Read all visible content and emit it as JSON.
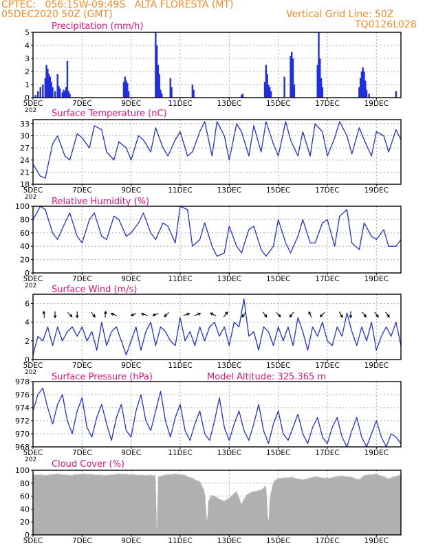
{
  "header": {
    "line1_left": "CPTEC:   056:15W-09:49S   ALTA FLORESTA (MT)",
    "line2_left": "05DEC2020 50Z (GMT)",
    "line2_right": "Vertical Grid Line: 50Z",
    "line3_right": "TQ0126L028",
    "model_altitude": "Model Altitude: 325.365 m"
  },
  "colors": {
    "header": "#f08a24",
    "title": "#e0127a",
    "series": "#1f2fe0",
    "cloud": "#b0b0b0",
    "axis": "#000000",
    "grid": "#aaaaaa"
  },
  "x_ticks": [
    "5DEC",
    "7DEC",
    "9DEC",
    "11DEC",
    "13DEC",
    "15DEC",
    "17DEC",
    "19DEC"
  ],
  "x_tick_days": [
    5,
    7,
    9,
    11,
    13,
    15,
    17,
    19
  ],
  "x_year_fragment": "202",
  "chart_data": [
    {
      "type": "bar",
      "title": "Precipitation (mm/h)",
      "xlim": [
        5,
        20
      ],
      "ylim": [
        0,
        5
      ],
      "yticks": [
        0,
        1,
        2,
        3,
        4,
        5
      ],
      "grid": true,
      "x": [
        5.1,
        5.2,
        5.3,
        5.4,
        5.5,
        5.55,
        5.6,
        5.65,
        5.7,
        5.75,
        5.8,
        5.9,
        6.0,
        6.05,
        6.1,
        6.2,
        6.25,
        6.3,
        6.35,
        6.4,
        6.45,
        6.5,
        8.7,
        8.75,
        8.8,
        8.85,
        8.9,
        10.0,
        10.05,
        10.1,
        10.15,
        10.2,
        10.25,
        10.6,
        10.65,
        11.5,
        11.55,
        13.5,
        13.55,
        14.45,
        14.5,
        14.55,
        14.6,
        14.65,
        14.7,
        15.25,
        15.5,
        15.55,
        15.6,
        15.65,
        16.6,
        16.65,
        16.7,
        16.75,
        16.8,
        18.3,
        18.35,
        18.4,
        18.45,
        18.5,
        18.55,
        18.6,
        18.7,
        19.8
      ],
      "values": [
        0.2,
        0.5,
        0.8,
        1.0,
        1.5,
        2.5,
        2.2,
        1.8,
        1.6,
        1.2,
        0.8,
        0.5,
        1.8,
        0.9,
        0.7,
        0.4,
        0.6,
        0.5,
        0.8,
        2.8,
        0.5,
        0.3,
        1.2,
        1.6,
        1.3,
        1.1,
        0.5,
        5.0,
        4.0,
        2.5,
        1.8,
        0.6,
        0.3,
        1.5,
        0.8,
        1.0,
        0.6,
        0.2,
        0.3,
        1.2,
        2.5,
        1.8,
        1.0,
        0.8,
        0.5,
        1.6,
        3.2,
        3.5,
        3.0,
        1.0,
        2.5,
        5.0,
        3.0,
        1.5,
        0.8,
        0.8,
        1.5,
        2.0,
        2.3,
        2.0,
        1.3,
        0.6,
        0.3,
        0.5
      ]
    },
    {
      "type": "line",
      "title": "Surface Temperature (nC)",
      "xlim": [
        5,
        20
      ],
      "ylim": [
        18,
        34
      ],
      "yticks": [
        18,
        21,
        24,
        27,
        30,
        33
      ],
      "grid": true,
      "x": [
        5.0,
        5.3,
        5.5,
        5.8,
        6.0,
        6.3,
        6.5,
        6.8,
        7.0,
        7.3,
        7.5,
        7.8,
        8.0,
        8.3,
        8.5,
        8.8,
        9.0,
        9.3,
        9.5,
        9.8,
        10.0,
        10.3,
        10.5,
        10.8,
        11.0,
        11.3,
        11.5,
        11.8,
        12.0,
        12.3,
        12.5,
        12.8,
        13.0,
        13.3,
        13.5,
        13.8,
        14.0,
        14.3,
        14.5,
        14.8,
        15.0,
        15.3,
        15.5,
        15.8,
        16.0,
        16.3,
        16.5,
        16.8,
        17.0,
        17.3,
        17.5,
        17.8,
        18.0,
        18.3,
        18.5,
        18.8,
        19.0,
        19.3,
        19.5,
        19.8,
        20.0
      ],
      "values": [
        23.0,
        20.0,
        19.5,
        28.0,
        30.0,
        25.0,
        24.0,
        30.5,
        29.5,
        27.0,
        32.5,
        31.5,
        26.0,
        24.0,
        28.5,
        27.0,
        24.0,
        30.0,
        29.0,
        26.0,
        32.0,
        27.0,
        25.0,
        29.0,
        31.0,
        25.0,
        26.0,
        31.0,
        33.5,
        25.0,
        33.5,
        30.0,
        24.0,
        33.0,
        31.0,
        25.0,
        32.5,
        26.0,
        33.5,
        28.0,
        25.0,
        33.5,
        29.0,
        25.0,
        31.0,
        25.0,
        33.0,
        31.0,
        25.0,
        29.5,
        33.5,
        30.0,
        25.5,
        32.0,
        29.0,
        25.0,
        31.0,
        30.0,
        26.0,
        31.5,
        29.0
      ]
    },
    {
      "type": "line",
      "title": "Relative Humidity (%)",
      "xlim": [
        5,
        20
      ],
      "ylim": [
        0,
        100
      ],
      "yticks": [
        0,
        20,
        40,
        60,
        80,
        100
      ],
      "grid": true,
      "x": [
        5.0,
        5.3,
        5.5,
        5.8,
        6.0,
        6.3,
        6.5,
        6.8,
        7.0,
        7.3,
        7.5,
        7.8,
        8.0,
        8.3,
        8.5,
        8.8,
        9.0,
        9.3,
        9.5,
        9.8,
        10.0,
        10.3,
        10.5,
        10.8,
        11.0,
        11.3,
        11.5,
        11.8,
        12.0,
        12.3,
        12.5,
        12.8,
        13.0,
        13.3,
        13.5,
        13.8,
        14.0,
        14.3,
        14.5,
        14.8,
        15.0,
        15.3,
        15.5,
        15.8,
        16.0,
        16.3,
        16.5,
        16.8,
        17.0,
        17.3,
        17.5,
        17.8,
        18.0,
        18.3,
        18.5,
        18.8,
        19.0,
        19.3,
        19.5,
        19.8,
        20.0
      ],
      "values": [
        80,
        100,
        95,
        60,
        50,
        75,
        90,
        55,
        45,
        80,
        90,
        55,
        50,
        85,
        80,
        55,
        60,
        75,
        90,
        60,
        50,
        75,
        70,
        45,
        100,
        95,
        40,
        50,
        75,
        40,
        25,
        30,
        70,
        40,
        30,
        65,
        70,
        35,
        25,
        40,
        80,
        45,
        30,
        55,
        80,
        45,
        45,
        75,
        80,
        40,
        85,
        95,
        45,
        35,
        75,
        55,
        50,
        65,
        40,
        40,
        50
      ]
    },
    {
      "type": "line",
      "title": "Surface Wind (m/s)",
      "xlim": [
        5,
        20
      ],
      "ylim": [
        0,
        7
      ],
      "yticks": [
        0,
        2,
        4,
        6
      ],
      "grid": true,
      "x": [
        5.0,
        5.2,
        5.4,
        5.6,
        5.8,
        6.0,
        6.2,
        6.4,
        6.6,
        6.8,
        7.0,
        7.2,
        7.4,
        7.6,
        7.8,
        8.0,
        8.2,
        8.4,
        8.6,
        8.8,
        9.0,
        9.2,
        9.4,
        9.6,
        9.8,
        10.0,
        10.2,
        10.4,
        10.6,
        10.8,
        11.0,
        11.2,
        11.4,
        11.6,
        11.8,
        12.0,
        12.2,
        12.4,
        12.6,
        12.8,
        13.0,
        13.2,
        13.4,
        13.6,
        13.8,
        14.0,
        14.2,
        14.4,
        14.6,
        14.8,
        15.0,
        15.2,
        15.4,
        15.6,
        15.8,
        16.0,
        16.2,
        16.4,
        16.6,
        16.8,
        17.0,
        17.2,
        17.4,
        17.6,
        17.8,
        18.0,
        18.2,
        18.4,
        18.6,
        18.8,
        19.0,
        19.2,
        19.4,
        19.6,
        19.8,
        20.0
      ],
      "values": [
        0.5,
        2.5,
        2.0,
        3.5,
        1.5,
        3.5,
        2.0,
        3.0,
        3.5,
        2.5,
        3.5,
        2.0,
        3.0,
        1.0,
        4.0,
        1.5,
        3.0,
        3.5,
        2.0,
        0.5,
        2.0,
        3.5,
        1.0,
        3.0,
        4.0,
        1.5,
        3.5,
        3.0,
        2.0,
        1.5,
        4.5,
        2.0,
        3.0,
        1.5,
        3.5,
        2.0,
        3.5,
        4.0,
        2.5,
        3.5,
        1.5,
        4.0,
        3.5,
        6.5,
        2.5,
        3.0,
        1.0,
        3.5,
        3.0,
        1.5,
        3.5,
        2.0,
        3.5,
        1.5,
        4.5,
        3.0,
        1.0,
        3.5,
        2.5,
        4.0,
        2.0,
        1.5,
        3.5,
        2.5,
        5.0,
        3.0,
        1.5,
        3.5,
        2.0,
        4.0,
        1.0,
        2.5,
        3.5,
        2.5,
        4.0,
        1.5
      ],
      "arrows": [
        {
          "day": 5.45,
          "dx": -0.1,
          "dy": 1.0
        },
        {
          "day": 5.9,
          "dx": 0.0,
          "dy": -1.0
        },
        {
          "day": 6.5,
          "dx": 0.7,
          "dy": -0.7
        },
        {
          "day": 6.8,
          "dx": 0.0,
          "dy": -1.0
        },
        {
          "day": 7.45,
          "dx": 0.6,
          "dy": -0.8
        },
        {
          "day": 7.95,
          "dx": 0.1,
          "dy": 1.0
        },
        {
          "day": 8.3,
          "dx": -0.9,
          "dy": 0.4
        },
        {
          "day": 9.1,
          "dx": -0.8,
          "dy": -0.4
        },
        {
          "day": 9.55,
          "dx": -1.0,
          "dy": 0.3
        },
        {
          "day": 10.0,
          "dx": -0.9,
          "dy": -0.3
        },
        {
          "day": 10.45,
          "dx": -0.7,
          "dy": -0.7
        },
        {
          "day": 11.25,
          "dx": 1.0,
          "dy": 0.3
        },
        {
          "day": 11.7,
          "dx": 1.0,
          "dy": 0.4
        },
        {
          "day": 12.35,
          "dx": -0.9,
          "dy": 0.5
        },
        {
          "day": 12.85,
          "dx": 0.6,
          "dy": 0.8
        },
        {
          "day": 13.6,
          "dx": -0.6,
          "dy": -0.8
        },
        {
          "day": 14.45,
          "dx": 0.6,
          "dy": -0.8
        },
        {
          "day": 15.0,
          "dx": 0.7,
          "dy": -0.7
        },
        {
          "day": 15.55,
          "dx": -0.6,
          "dy": -0.8
        },
        {
          "day": 16.3,
          "dx": -0.4,
          "dy": 0.9
        },
        {
          "day": 16.8,
          "dx": -0.7,
          "dy": -0.7
        },
        {
          "day": 17.55,
          "dx": 0.5,
          "dy": -0.9
        },
        {
          "day": 17.95,
          "dx": 0.0,
          "dy": -1.0
        },
        {
          "day": 18.5,
          "dx": 0.6,
          "dy": -0.8
        },
        {
          "day": 19.0,
          "dx": 0.6,
          "dy": -0.8
        },
        {
          "day": 19.45,
          "dx": 0.6,
          "dy": -0.8
        }
      ]
    },
    {
      "type": "line",
      "title": "Surface Pressure (hPa)",
      "xlim": [
        5,
        20
      ],
      "ylim": [
        968,
        978
      ],
      "yticks": [
        968,
        970,
        972,
        974,
        976,
        978
      ],
      "grid": true,
      "x": [
        5.0,
        5.2,
        5.4,
        5.6,
        5.8,
        6.0,
        6.2,
        6.4,
        6.6,
        6.8,
        7.0,
        7.2,
        7.4,
        7.6,
        7.8,
        8.0,
        8.2,
        8.4,
        8.6,
        8.8,
        9.0,
        9.2,
        9.4,
        9.6,
        9.8,
        10.0,
        10.2,
        10.4,
        10.6,
        10.8,
        11.0,
        11.2,
        11.4,
        11.6,
        11.8,
        12.0,
        12.2,
        12.4,
        12.6,
        12.8,
        13.0,
        13.2,
        13.4,
        13.6,
        13.8,
        14.0,
        14.2,
        14.4,
        14.6,
        14.8,
        15.0,
        15.2,
        15.4,
        15.6,
        15.8,
        16.0,
        16.2,
        16.4,
        16.6,
        16.8,
        17.0,
        17.2,
        17.4,
        17.6,
        17.8,
        18.0,
        18.2,
        18.4,
        18.6,
        18.8,
        19.0,
        19.2,
        19.4,
        19.6,
        19.8,
        20.0
      ],
      "values": [
        973.5,
        976.0,
        977.0,
        974.0,
        971.5,
        974.5,
        976.0,
        972.0,
        970.0,
        973.5,
        975.5,
        971.0,
        969.5,
        972.5,
        974.5,
        971.5,
        969.0,
        972.5,
        974.5,
        970.5,
        969.5,
        973.5,
        976.0,
        972.0,
        970.5,
        973.5,
        976.5,
        972.0,
        969.5,
        972.5,
        974.5,
        970.5,
        969.0,
        971.5,
        973.5,
        970.0,
        969.0,
        972.0,
        975.5,
        971.0,
        969.0,
        971.5,
        973.5,
        970.5,
        969.0,
        971.5,
        974.5,
        970.5,
        968.5,
        971.5,
        973.5,
        970.0,
        969.0,
        971.0,
        973.0,
        970.0,
        968.5,
        971.0,
        972.5,
        969.5,
        968.5,
        971.0,
        972.5,
        969.5,
        968.0,
        970.5,
        972.5,
        969.5,
        968.0,
        970.0,
        972.0,
        969.5,
        968.0,
        970.0,
        969.5,
        968.5
      ]
    },
    {
      "type": "area",
      "title": "Cloud Cover (%)",
      "xlim": [
        5,
        20
      ],
      "ylim": [
        0,
        100
      ],
      "yticks": [
        0,
        20,
        40,
        60,
        80,
        100
      ],
      "grid": true,
      "x": [
        5.0,
        5.5,
        6.0,
        6.5,
        7.0,
        7.5,
        8.0,
        8.5,
        9.0,
        9.5,
        10.0,
        10.05,
        10.1,
        10.3,
        10.5,
        10.8,
        11.0,
        11.2,
        11.5,
        11.8,
        12.0,
        12.1,
        12.15,
        12.3,
        12.5,
        12.8,
        13.0,
        13.3,
        13.5,
        13.7,
        14.0,
        14.3,
        14.5,
        14.6,
        14.65,
        14.8,
        15.0,
        15.5,
        16.0,
        16.5,
        17.0,
        17.5,
        18.0,
        18.3,
        18.5,
        19.0,
        19.5,
        20.0
      ],
      "values": [
        96,
        95,
        97,
        95,
        97,
        96,
        95,
        97,
        96,
        95,
        95,
        2,
        92,
        95,
        96,
        97,
        96,
        95,
        90,
        85,
        70,
        20,
        55,
        65,
        60,
        55,
        60,
        70,
        50,
        65,
        70,
        72,
        80,
        15,
        60,
        85,
        90,
        92,
        88,
        93,
        90,
        94,
        92,
        88,
        95,
        97,
        90,
        96
      ]
    }
  ]
}
